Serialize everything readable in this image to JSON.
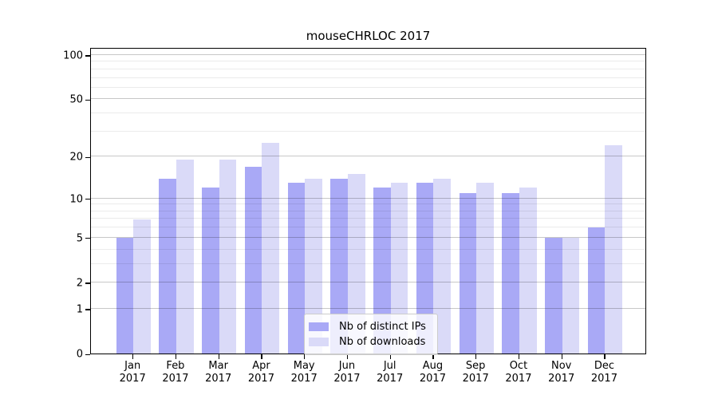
{
  "chart_data": {
    "type": "bar",
    "title": "mouseCHRLOC 2017",
    "categories": [
      "Jan",
      "Feb",
      "Mar",
      "Apr",
      "May",
      "Jun",
      "Jul",
      "Aug",
      "Sep",
      "Oct",
      "Nov",
      "Dec"
    ],
    "x_year_label": "2017",
    "series": [
      {
        "name": "Nb of distinct IPs",
        "color": "#a9a9f6",
        "values": [
          5,
          14,
          12,
          17,
          13,
          14,
          12,
          13,
          11,
          11,
          5,
          6
        ]
      },
      {
        "name": "Nb of downloads",
        "color": "#dadaf8",
        "values": [
          7,
          19,
          19,
          25,
          14,
          15,
          13,
          14,
          13,
          12,
          5,
          24
        ]
      }
    ],
    "xlabel": "",
    "ylabel": "",
    "y_scale": "log1p",
    "ylim": [
      0,
      113
    ],
    "y_tick_labels": [
      "100",
      "50",
      "20",
      "10",
      "5",
      "2",
      "1",
      "0"
    ],
    "y_tick_values": [
      100,
      50,
      20,
      10,
      5,
      2,
      1,
      0
    ],
    "grid_values_major": [
      1,
      2,
      5,
      10,
      20,
      50,
      100
    ],
    "grid_values_minor": [
      3,
      4,
      6,
      7,
      8,
      9,
      30,
      40,
      60,
      70,
      80,
      90
    ],
    "grid": "horizontal",
    "legend_position": "lower center"
  }
}
